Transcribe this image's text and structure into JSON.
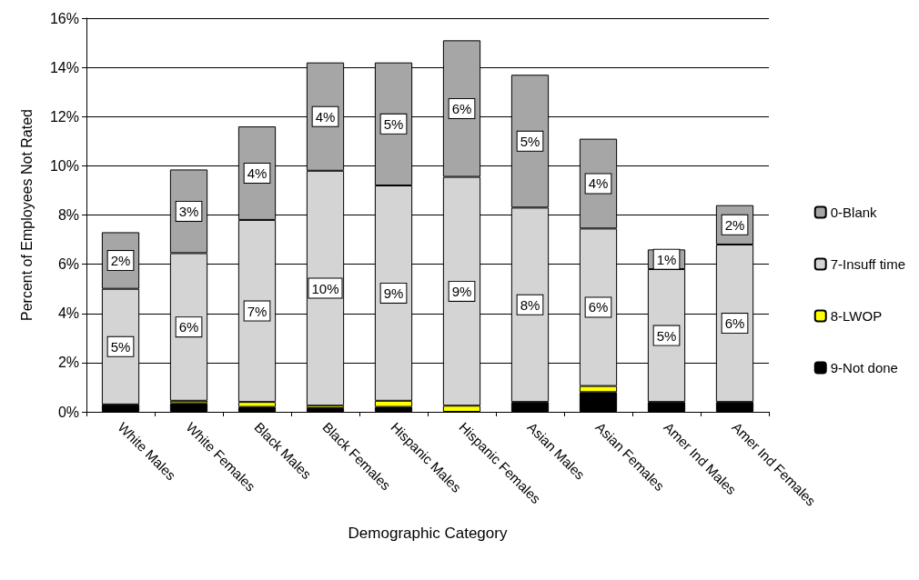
{
  "chart_data": {
    "type": "bar",
    "stacked": true,
    "xlabel": "Demographic Category",
    "ylabel": "Percent of Employees Not Rated",
    "categories": [
      "White Males",
      "White Females",
      "Black Males",
      "Black Females",
      "Hispanic Males",
      "Hispanic Females",
      "Asian Males",
      "Asian Females",
      "Amer Ind Males",
      "Amer Ind Females"
    ],
    "series": [
      {
        "name": "9-Not done",
        "color": "#000000",
        "values": [
          0.3,
          0.35,
          0.2,
          0.15,
          0.2,
          0,
          0.4,
          0.8,
          0.4,
          0.4
        ]
      },
      {
        "name": "8-LWOP",
        "color": "#ffff00",
        "values": [
          0,
          0.1,
          0.2,
          0.1,
          0.25,
          0.25,
          0,
          0.25,
          0,
          0
        ]
      },
      {
        "name": "7-Insuff time",
        "color": "#d4d4d4",
        "values": [
          4.7,
          6.0,
          7.4,
          9.55,
          8.75,
          9.3,
          7.9,
          6.4,
          5.4,
          6.4
        ],
        "value_labels": [
          "5%",
          "6%",
          "7%",
          "10%",
          "9%",
          "9%",
          "8%",
          "6%",
          "5%",
          "6%"
        ]
      },
      {
        "name": "0-Blank",
        "color": "#a6a6a6",
        "values": [
          2.3,
          3.4,
          3.8,
          4.4,
          5.0,
          5.55,
          5.4,
          3.65,
          0.8,
          1.6
        ],
        "value_labels": [
          "2%",
          "3%",
          "4%",
          "4%",
          "5%",
          "6%",
          "5%",
          "4%",
          "1%",
          "2%"
        ]
      }
    ],
    "ylim": [
      0,
      16
    ],
    "yticks": [
      {
        "value": 0,
        "label": "0%"
      },
      {
        "value": 2,
        "label": "2%"
      },
      {
        "value": 4,
        "label": "4%"
      },
      {
        "value": 6,
        "label": "6%"
      },
      {
        "value": 8,
        "label": "8%"
      },
      {
        "value": 10,
        "label": "10%"
      },
      {
        "value": 12,
        "label": "12%"
      },
      {
        "value": 14,
        "label": "14%"
      },
      {
        "value": 16,
        "label": "16%"
      }
    ],
    "grid": "y",
    "legend": "right"
  }
}
